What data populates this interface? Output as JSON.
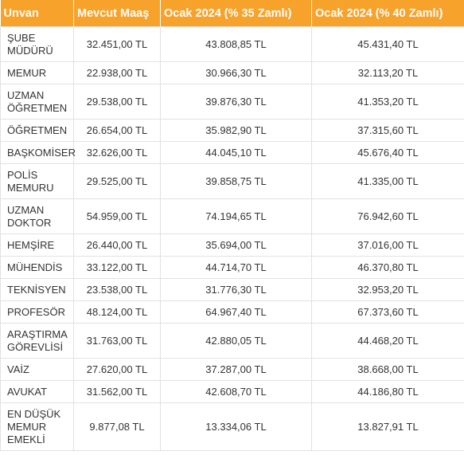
{
  "headers": [
    "Unvan",
    "Mevcut Maaş",
    "Ocak 2024 (% 35 Zamlı)",
    "Ocak 2024 (% 40 Zamlı)"
  ],
  "rows": [
    {
      "unvan": "ŞUBE MÜDÜRÜ",
      "mevcut": "32.451,00 TL",
      "z35": "43.808,85 TL",
      "z40": "45.431,40 TL"
    },
    {
      "unvan": "MEMUR",
      "mevcut": "22.938,00 TL",
      "z35": "30.966,30 TL",
      "z40": "32.113,20 TL"
    },
    {
      "unvan": "UZMAN ÖĞRETMEN",
      "mevcut": "29.538,00 TL",
      "z35": "39.876,30 TL",
      "z40": "41.353,20 TL"
    },
    {
      "unvan": "ÖĞRETMEN",
      "mevcut": "26.654,00 TL",
      "z35": "35.982,90 TL",
      "z40": "37.315,60 TL"
    },
    {
      "unvan": "BAŞKOMİSER",
      "mevcut": "32.626,00 TL",
      "z35": "44.045,10 TL",
      "z40": "45.676,40 TL"
    },
    {
      "unvan": "POLİS MEMURU",
      "mevcut": "29.525,00 TL",
      "z35": "39.858,75 TL",
      "z40": "41.335,00 TL"
    },
    {
      "unvan": "UZMAN DOKTOR",
      "mevcut": "54.959,00 TL",
      "z35": "74.194,65 TL",
      "z40": "76.942,60 TL"
    },
    {
      "unvan": "HEMŞİRE",
      "mevcut": "26.440,00 TL",
      "z35": "35.694,00 TL",
      "z40": "37.016,00 TL"
    },
    {
      "unvan": "MÜHENDİS",
      "mevcut": "33.122,00 TL",
      "z35": "44.714,70 TL",
      "z40": "46.370,80 TL"
    },
    {
      "unvan": "TEKNİSYEN",
      "mevcut": "23.538,00 TL",
      "z35": "31.776,30 TL",
      "z40": "32.953,20 TL"
    },
    {
      "unvan": "PROFESÖR",
      "mevcut": "48.124,00 TL",
      "z35": "64.967,40 TL",
      "z40": "67.373,60 TL"
    },
    {
      "unvan": "ARAŞTIRMA GÖREVLİSİ",
      "mevcut": "31.763,00 TL",
      "z35": "42.880,05 TL",
      "z40": "44.468,20 TL"
    },
    {
      "unvan": "VAİZ",
      "mevcut": "27.620,00 TL",
      "z35": "37.287,00 TL",
      "z40": "38.668,00 TL"
    },
    {
      "unvan": "AVUKAT",
      "mevcut": "31.562,00 TL",
      "z35": "42.608,70 TL",
      "z40": "44.186,80 TL"
    },
    {
      "unvan": "EN DÜŞÜK MEMUR EMEKLİ",
      "mevcut": "9.877,08 TL",
      "z35": "13.334,06 TL",
      "z40": "13.827,91 TL"
    }
  ]
}
